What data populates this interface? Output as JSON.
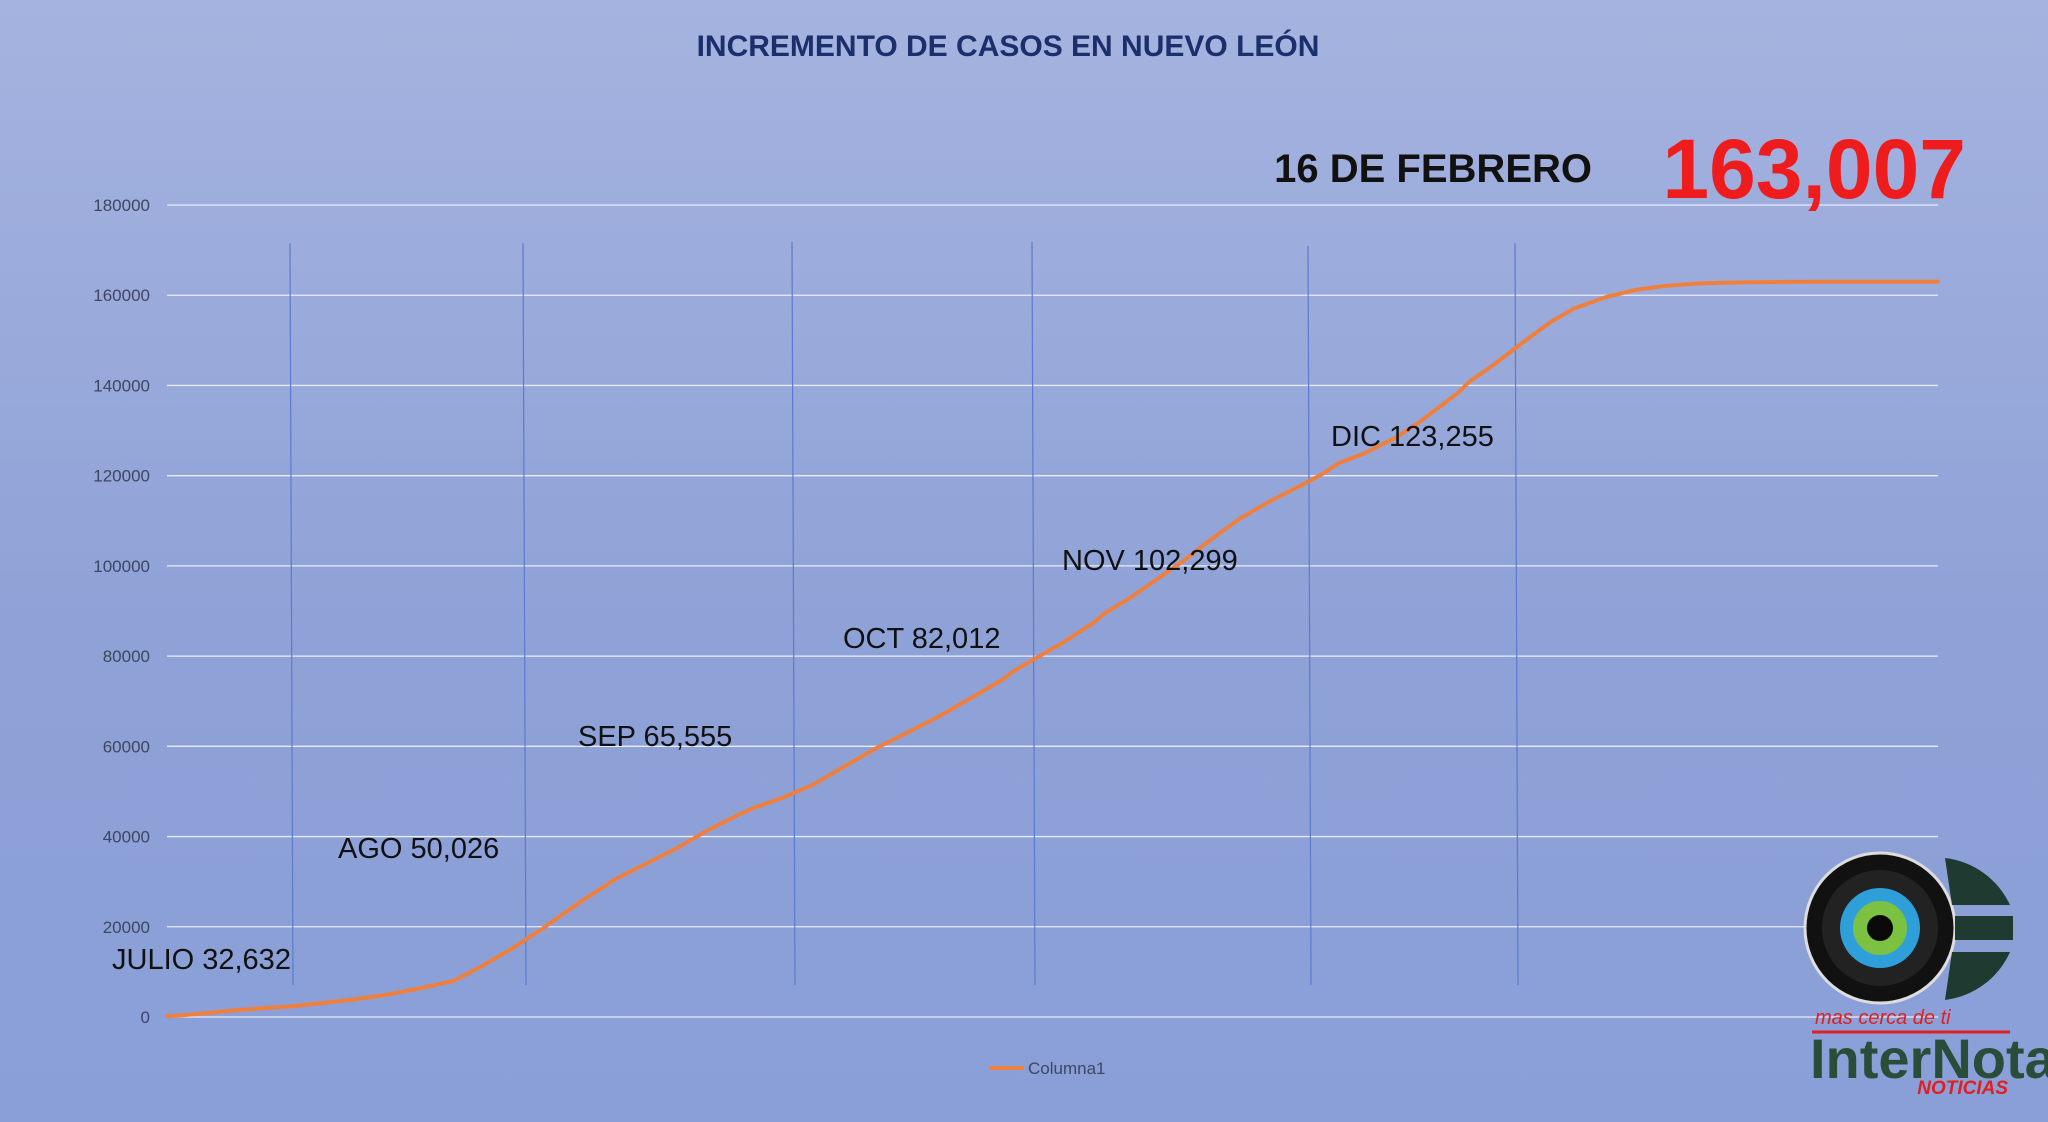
{
  "chart_data": {
    "type": "line",
    "title": "INCREMENTO DE CASOS EN NUEVO LEÓN",
    "ylim": [
      0,
      180000
    ],
    "yticks": [
      "0",
      "20000",
      "40000",
      "60000",
      "80000",
      "100000",
      "120000",
      "140000",
      "160000",
      "180000"
    ],
    "grid": true,
    "legend_position": "bottom",
    "series": [
      {
        "name": "Columna1",
        "color": "#f07f3c",
        "x": [
          0,
          3,
          8,
          12,
          18,
          24,
          30,
          36,
          42,
          48,
          55,
          60,
          66,
          72,
          75,
          80,
          86,
          92,
          98,
          104,
          110,
          113,
          118,
          124,
          130,
          136,
          142,
          148,
          154,
          160,
          163,
          166,
          172,
          178,
          180,
          185,
          190,
          195,
          200,
          206,
          212,
          218,
          222,
          225,
          230,
          236,
          240,
          244,
          248,
          250,
          254,
          258,
          262,
          266,
          270,
          276,
          282,
          288,
          294,
          300,
          306,
          312,
          318,
          320,
          324,
          327,
          330,
          335,
          340
        ],
        "values": [
          200,
          400,
          900,
          1400,
          1900,
          2400,
          3100,
          3900,
          4900,
          6200,
          8000,
          11000,
          15000,
          19500,
          22000,
          26000,
          30500,
          34000,
          37500,
          41500,
          45000,
          46500,
          48500,
          51500,
          55500,
          59500,
          63000,
          66500,
          70500,
          74500,
          77000,
          79000,
          83000,
          87500,
          89500,
          93000,
          97000,
          101000,
          105500,
          110500,
          114500,
          118000,
          120500,
          122800,
          125000,
          128500,
          131500,
          135000,
          138500,
          140800,
          144000,
          147500,
          151000,
          154300,
          157000,
          159500,
          161200,
          162100,
          162600,
          162800,
          162900,
          162950,
          162980,
          162990,
          163000,
          163003,
          163005,
          163006,
          163007
        ]
      }
    ],
    "annotations": [
      {
        "label": "JULIO 32,632"
      },
      {
        "label": "AGO 50,026"
      },
      {
        "label": "SEP 65,555"
      },
      {
        "label": "OCT 82,012"
      },
      {
        "label": "NOV 102,299"
      },
      {
        "label": "DIC 123,255"
      }
    ],
    "highlight": {
      "date": "16 DE FEBRERO",
      "total": "163,007"
    }
  },
  "logo": {
    "tagline": "mas cerca de ti",
    "name": "InterNota",
    "subtitle": "NOTICIAS",
    "icon": "camera-lens-icon"
  }
}
